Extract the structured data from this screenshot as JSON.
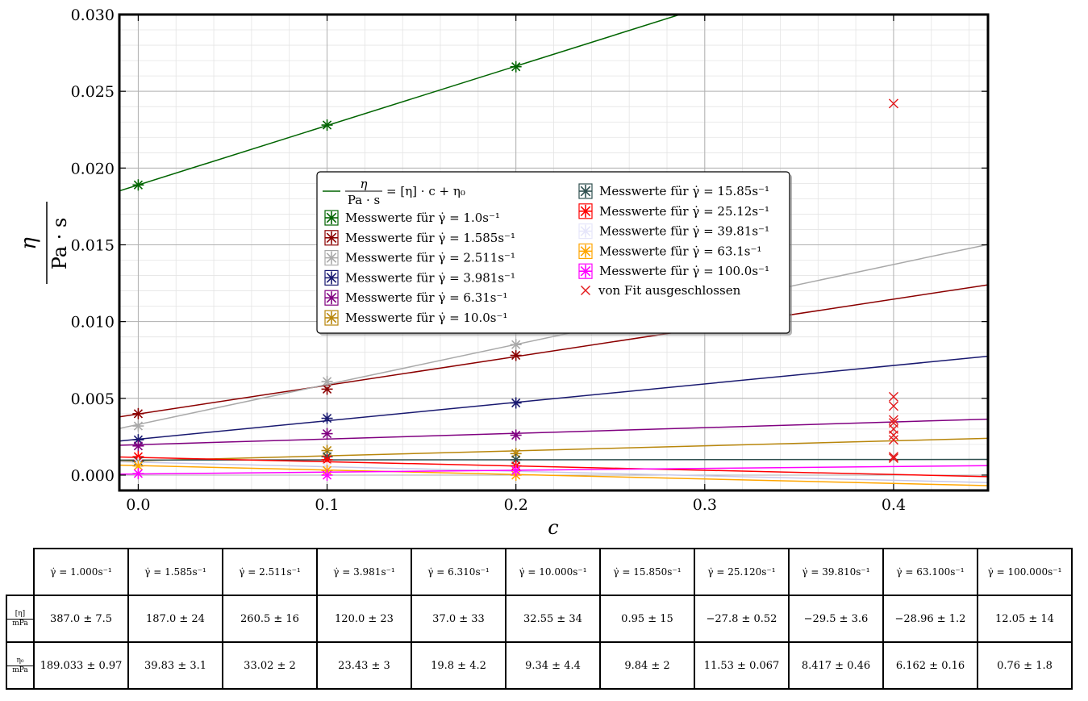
{
  "chart_data": {
    "type": "scatter",
    "xlabel": "c",
    "ylabel_num": "η",
    "ylabel_den": "Pa · s",
    "xlim": [
      -0.01,
      0.45
    ],
    "ylim": [
      -0.001,
      0.03
    ],
    "xticks": [
      "0.0",
      "0.1",
      "0.2",
      "0.3",
      "0.4"
    ],
    "xtick_values": [
      0.0,
      0.1,
      0.2,
      0.3,
      0.4
    ],
    "yticks": [
      "0.000",
      "0.005",
      "0.010",
      "0.015",
      "0.020",
      "0.025",
      "0.030"
    ],
    "ytick_values": [
      0.0,
      0.005,
      0.01,
      0.015,
      0.02,
      0.025,
      0.03
    ],
    "grid": true,
    "legend_placement": "center",
    "fit_label_num": "η",
    "fit_label_den": "Pa · s",
    "fit_label_rhs": "= [η] · c + η₀",
    "excluded_label": "von Fit ausgeschlossen",
    "excluded_color": "#e41a1c",
    "series": [
      {
        "name": "Messwerte für γ̇ = 1.0s⁻¹",
        "color": "#006400",
        "x": [
          0.0,
          0.1,
          0.2
        ],
        "y": [
          0.0189,
          0.0228,
          0.0266
        ],
        "fit": [
          0.0189,
          0.0387
        ],
        "excluded_y": []
      },
      {
        "name": "Messwerte für γ̇ = 1.585s⁻¹",
        "color": "#8b0000",
        "x": [
          0.0,
          0.1,
          0.2
        ],
        "y": [
          0.004,
          0.0056,
          0.0078
        ],
        "fit": [
          0.00398,
          0.0187
        ],
        "excluded_y": [
          0.0242
        ]
      },
      {
        "name": "Messwerte für γ̇ = 2.511s⁻¹",
        "color": "#a9a9a9",
        "x": [
          0.0,
          0.1,
          0.2
        ],
        "y": [
          0.0032,
          0.0061,
          0.0085
        ],
        "fit": [
          0.0033,
          0.02605
        ],
        "excluded_y": [
          0.0051
        ]
      },
      {
        "name": "Messwerte für γ̇ = 3.981s⁻¹",
        "color": "#191970",
        "x": [
          0.0,
          0.1,
          0.2
        ],
        "y": [
          0.0023,
          0.0037,
          0.0047
        ],
        "fit": [
          0.00234,
          0.012
        ],
        "excluded_y": [
          0.0045
        ]
      },
      {
        "name": "Messwerte für γ̇ = 6.31s⁻¹",
        "color": "#800080",
        "x": [
          0.0,
          0.1,
          0.2
        ],
        "y": [
          0.0019,
          0.0027,
          0.0026
        ],
        "fit": [
          0.00198,
          0.0037
        ],
        "excluded_y": [
          0.0034
        ]
      },
      {
        "name": "Messwerte für γ̇ = 10.0s⁻¹",
        "color": "#b8860b",
        "x": [
          0.0,
          0.1,
          0.2
        ],
        "y": [
          0.0008,
          0.0016,
          0.0014
        ],
        "fit": [
          0.00093,
          0.003255
        ],
        "excluded_y": [
          0.0036
        ]
      },
      {
        "name": "Messwerte für γ̇ = 15.85s⁻¹",
        "color": "#2f4f4f",
        "x": [
          0.0,
          0.1,
          0.2
        ],
        "y": [
          0.0009,
          0.0012,
          0.001
        ],
        "fit": [
          0.00098,
          9.5e-05
        ],
        "excluded_y": [
          0.0012
        ]
      },
      {
        "name": "Messwerte für γ̇ = 25.12s⁻¹",
        "color": "#ff0000",
        "x": [
          0.0,
          0.1,
          0.2
        ],
        "y": [
          0.0012,
          0.001,
          0.0006
        ],
        "fit": [
          0.00115,
          -0.00278
        ],
        "excluded_y": [
          0.003
        ]
      },
      {
        "name": "Messwerte für γ̇ = 39.81s⁻¹",
        "color": "#e6e6fa",
        "x": [
          0.0,
          0.1,
          0.2
        ],
        "y": [
          0.0008,
          0.0005,
          0.0003
        ],
        "fit": [
          0.00084,
          -0.00295
        ],
        "excluded_y": [
          0.0026
        ]
      },
      {
        "name": "Messwerte für γ̇ = 63.1s⁻¹",
        "color": "#ffa500",
        "x": [
          0.0,
          0.1,
          0.2
        ],
        "y": [
          0.0006,
          0.0003,
          0.0
        ],
        "fit": [
          0.00062,
          -0.0029
        ],
        "excluded_y": [
          0.0023
        ]
      },
      {
        "name": "Messwerte für γ̇ = 100.0s⁻¹",
        "color": "#ff00ff",
        "x": [
          0.0,
          0.1,
          0.2
        ],
        "y": [
          0.0001,
          0.0,
          0.0003
        ],
        "fit": [
          7.6e-05,
          0.001205
        ],
        "excluded_y": [
          0.0011
        ]
      }
    ]
  },
  "table": {
    "headers": [
      "γ̇ = 1.000s⁻¹",
      "γ̇ = 1.585s⁻¹",
      "γ̇ = 2.511s⁻¹",
      "γ̇ = 3.981s⁻¹",
      "γ̇ = 6.310s⁻¹",
      "γ̇ = 10.000s⁻¹",
      "γ̇ = 15.850s⁻¹",
      "γ̇ = 25.120s⁻¹",
      "γ̇ = 39.810s⁻¹",
      "γ̇ = 63.100s⁻¹",
      "γ̇ = 100.000s⁻¹"
    ],
    "rows": [
      {
        "label_num": "[η]",
        "label_den": "mPa",
        "cells": [
          "387.0 ± 7.5",
          "187.0 ± 24",
          "260.5 ± 16",
          "120.0 ± 23",
          "37.0 ± 33",
          "32.55 ± 34",
          "0.95 ± 15",
          "−27.8 ± 0.52",
          "−29.5 ± 3.6",
          "−28.96 ± 1.2",
          "12.05 ± 14"
        ]
      },
      {
        "label_num": "η₀",
        "label_den": "mPa",
        "cells": [
          "189.033 ± 0.97",
          "39.83 ± 3.1",
          "33.02 ± 2",
          "23.43 ± 3",
          "19.8 ± 4.2",
          "9.34 ± 4.4",
          "9.84 ± 2",
          "11.53 ± 0.067",
          "8.417 ± 0.46",
          "6.162 ± 0.16",
          "0.76 ± 1.8"
        ]
      }
    ]
  }
}
